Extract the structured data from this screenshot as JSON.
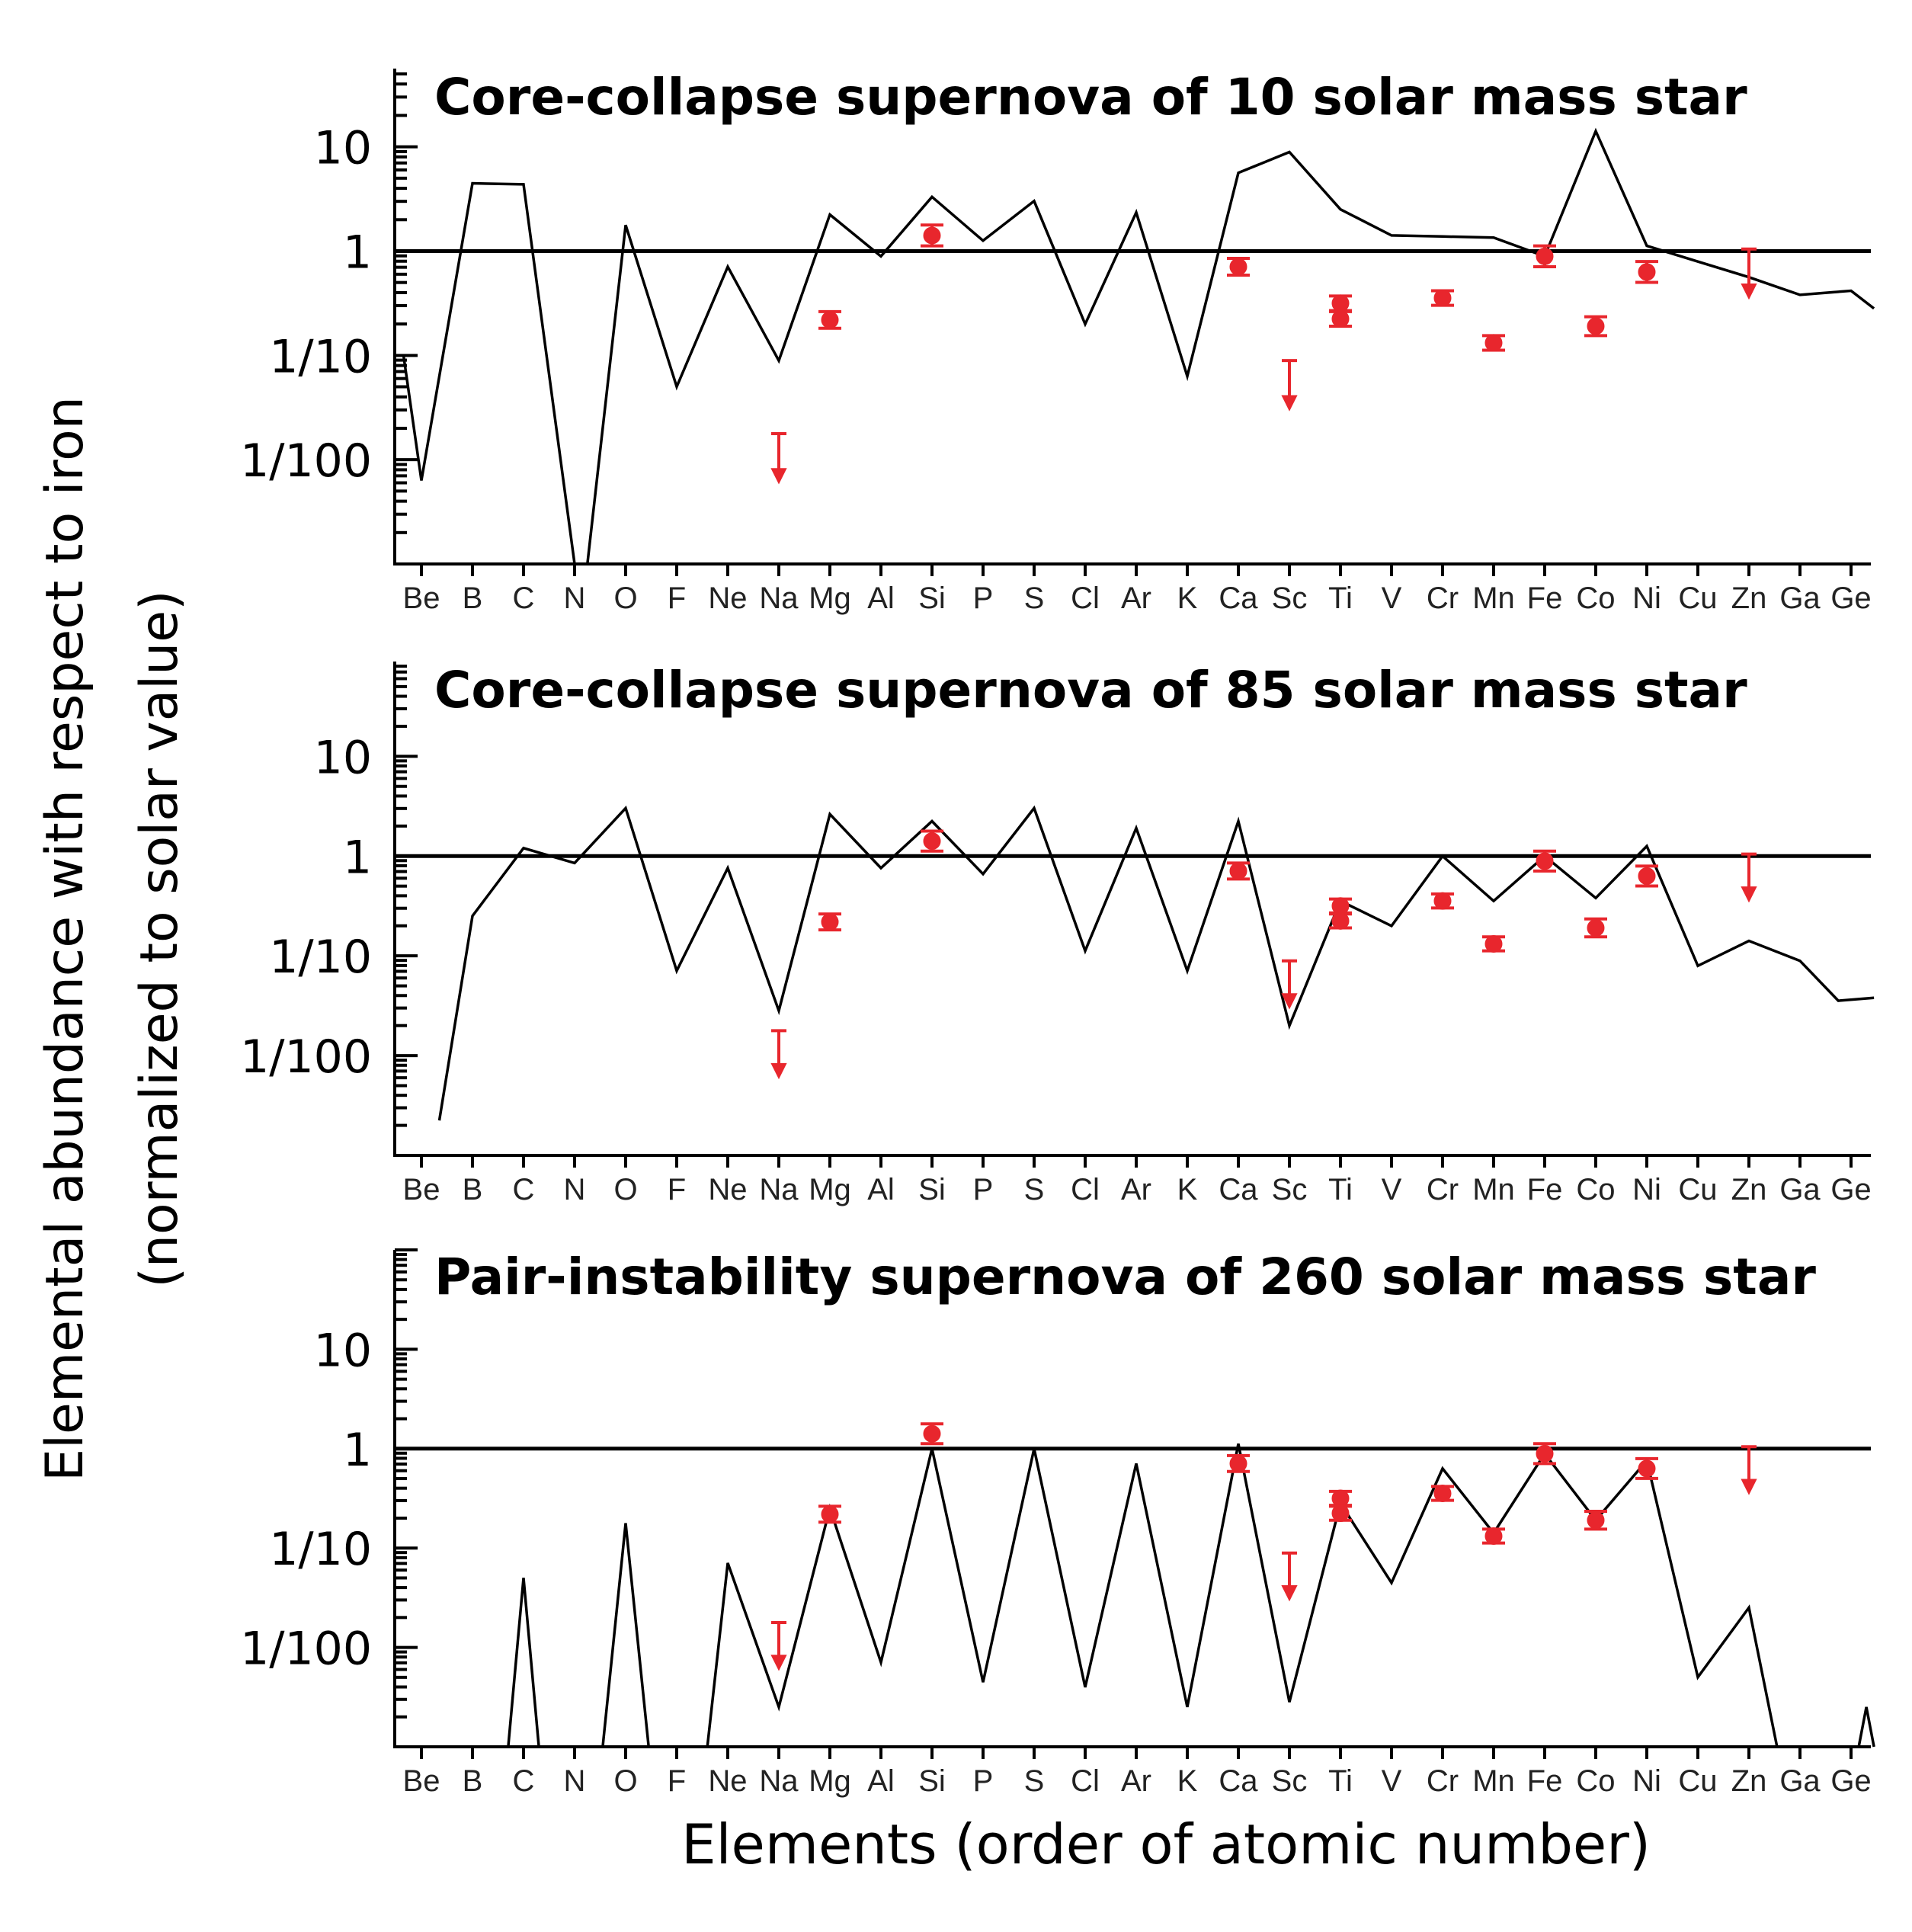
{
  "y_axis_label_line1": "Elemental abundance with respect to iron",
  "y_axis_label_line2": "(normalized to solar value)",
  "x_axis_label": "Elements (order of atomic number)",
  "colors": {
    "model": "#000000",
    "observed": "#e8262d",
    "background": "#ffffff"
  },
  "chart_data": [
    {
      "type": "line",
      "title": "Core-collapse supernova of 10 solar mass star",
      "scale": "log",
      "ylim_log10": [
        -3,
        1.75
      ],
      "yticks": [
        {
          "label": "10",
          "log10": 1
        },
        {
          "label": "1",
          "log10": 0
        },
        {
          "label": "1/10",
          "log10": -1
        },
        {
          "label": "1/100",
          "log10": -2
        }
      ],
      "categories": [
        "Be",
        "B",
        "C",
        "N",
        "O",
        "F",
        "Ne",
        "Na",
        "Mg",
        "Al",
        "Si",
        "P",
        "S",
        "Cl",
        "Ar",
        "K",
        "Ca",
        "Sc",
        "Ti",
        "V",
        "Cr",
        "Mn",
        "Fe",
        "Co",
        "Ni",
        "Cu",
        "Zn",
        "Ga",
        "Ge"
      ],
      "series": [
        {
          "name": "model",
          "points": [
            [
              -0.35,
              -1.0
            ],
            [
              0,
              -2.2
            ],
            [
              1,
              0.65
            ],
            [
              2,
              0.64
            ],
            [
              3,
              -3.0
            ],
            [
              3.25,
              -3.0
            ],
            [
              4,
              0.25
            ],
            [
              5,
              -1.3
            ],
            [
              6,
              -0.15
            ],
            [
              7,
              -1.05
            ],
            [
              8,
              0.35
            ],
            [
              9,
              -0.05
            ],
            [
              10,
              0.52
            ],
            [
              11,
              0.1
            ],
            [
              12,
              0.48
            ],
            [
              13,
              -0.7
            ],
            [
              14,
              0.37
            ],
            [
              15,
              -1.2
            ],
            [
              16,
              0.75
            ],
            [
              17,
              0.95
            ],
            [
              18,
              0.4
            ],
            [
              19,
              0.15
            ],
            [
              20,
              0.14
            ],
            [
              21,
              0.13
            ],
            [
              22,
              -0.05
            ],
            [
              23,
              1.15
            ],
            [
              24,
              0.05
            ],
            [
              25,
              -0.1
            ],
            [
              26,
              -0.25
            ],
            [
              27,
              -0.42
            ],
            [
              28,
              -0.38
            ],
            [
              28.45,
              -0.55
            ]
          ]
        }
      ],
      "observed": [
        {
          "element": "Na",
          "upper_limit": true,
          "log10": -2.0
        },
        {
          "element": "Mg",
          "log10": -0.66,
          "err": 0.08
        },
        {
          "element": "Si",
          "log10": 0.15,
          "err": 0.1
        },
        {
          "element": "Ca",
          "log10": -0.15,
          "err": 0.08
        },
        {
          "element": "Sc",
          "upper_limit": true,
          "log10": -1.3
        },
        {
          "element": "Ti",
          "log10": -0.5,
          "err": 0.07
        },
        {
          "element": "Ti",
          "log10": -0.65,
          "err": 0.07
        },
        {
          "element": "Cr",
          "log10": -0.45,
          "err": 0.07
        },
        {
          "element": "Mn",
          "log10": -0.88,
          "err": 0.07
        },
        {
          "element": "Fe",
          "log10": -0.05,
          "err": 0.1
        },
        {
          "element": "Co",
          "log10": -0.72,
          "err": 0.09
        },
        {
          "element": "Ni",
          "log10": -0.2,
          "err": 0.1
        },
        {
          "element": "Zn",
          "upper_limit": true,
          "log10": -0.23
        }
      ]
    },
    {
      "type": "line",
      "title": "Core-collapse supernova of 85 solar mass star",
      "scale": "log",
      "ylim_log10": [
        -3,
        1.95
      ],
      "yticks": [
        {
          "label": "10",
          "log10": 1
        },
        {
          "label": "1",
          "log10": 0
        },
        {
          "label": "1/10",
          "log10": -1
        },
        {
          "label": "1/100",
          "log10": -2
        }
      ],
      "categories": [
        "Be",
        "B",
        "C",
        "N",
        "O",
        "F",
        "Ne",
        "Na",
        "Mg",
        "Al",
        "Si",
        "P",
        "S",
        "Cl",
        "Ar",
        "K",
        "Ca",
        "Sc",
        "Ti",
        "V",
        "Cr",
        "Mn",
        "Fe",
        "Co",
        "Ni",
        "Cu",
        "Zn",
        "Ga",
        "Ge"
      ],
      "series": [
        {
          "name": "model",
          "points": [
            [
              0.35,
              -2.65
            ],
            [
              1,
              -0.6
            ],
            [
              2,
              0.08
            ],
            [
              3,
              -0.07
            ],
            [
              4,
              0.48
            ],
            [
              5,
              -1.15
            ],
            [
              6,
              -0.12
            ],
            [
              7,
              -1.55
            ],
            [
              8,
              0.42
            ],
            [
              9,
              -0.12
            ],
            [
              10,
              0.35
            ],
            [
              11,
              -0.18
            ],
            [
              12,
              0.48
            ],
            [
              13,
              -0.95
            ],
            [
              14,
              0.28
            ],
            [
              15,
              -1.15
            ],
            [
              16,
              0.35
            ],
            [
              17,
              -1.7
            ],
            [
              18,
              -0.45
            ],
            [
              19,
              -0.7
            ],
            [
              20,
              0.0
            ],
            [
              21,
              -0.45
            ],
            [
              22,
              0.0
            ],
            [
              23,
              -0.42
            ],
            [
              24,
              0.1
            ],
            [
              25,
              -1.1
            ],
            [
              26,
              -0.85
            ],
            [
              27,
              -1.05
            ],
            [
              27.75,
              -1.45
            ],
            [
              28.45,
              -1.42
            ]
          ]
        }
      ],
      "observed": [
        {
          "element": "Na",
          "upper_limit": true,
          "log10": -2.0
        },
        {
          "element": "Mg",
          "log10": -0.66,
          "err": 0.08
        },
        {
          "element": "Si",
          "log10": 0.15,
          "err": 0.1
        },
        {
          "element": "Ca",
          "log10": -0.15,
          "err": 0.08
        },
        {
          "element": "Sc",
          "upper_limit": true,
          "log10": -1.3
        },
        {
          "element": "Ti",
          "log10": -0.5,
          "err": 0.07
        },
        {
          "element": "Ti",
          "log10": -0.65,
          "err": 0.07
        },
        {
          "element": "Cr",
          "log10": -0.45,
          "err": 0.07
        },
        {
          "element": "Mn",
          "log10": -0.88,
          "err": 0.07
        },
        {
          "element": "Fe",
          "log10": -0.05,
          "err": 0.1
        },
        {
          "element": "Co",
          "log10": -0.72,
          "err": 0.09
        },
        {
          "element": "Ni",
          "log10": -0.2,
          "err": 0.1
        },
        {
          "element": "Zn",
          "upper_limit": true,
          "log10": -0.23
        }
      ]
    },
    {
      "type": "line",
      "title": "Pair-instability supernova of 260 solar mass star",
      "scale": "log",
      "ylim_log10": [
        -3,
        2.0
      ],
      "yticks": [
        {
          "label": "10",
          "log10": 1
        },
        {
          "label": "1",
          "log10": 0
        },
        {
          "label": "1/10",
          "log10": -1
        },
        {
          "label": "1/100",
          "log10": -2
        }
      ],
      "categories": [
        "Be",
        "B",
        "C",
        "N",
        "O",
        "F",
        "Ne",
        "Na",
        "Mg",
        "Al",
        "Si",
        "P",
        "S",
        "Cl",
        "Ar",
        "K",
        "Ca",
        "Sc",
        "Ti",
        "V",
        "Cr",
        "Mn",
        "Fe",
        "Co",
        "Ni",
        "Cu",
        "Zn",
        "Ga",
        "Ge"
      ],
      "series": [
        {
          "name": "model",
          "segments": [
            [
              [
                1.7,
                -3.0
              ],
              [
                2,
                -1.3
              ],
              [
                2.3,
                -3.0
              ]
            ],
            [
              [
                3.55,
                -3.0
              ],
              [
                4,
                -0.75
              ],
              [
                4.45,
                -3.0
              ]
            ],
            [
              [
                5.6,
                -3.0
              ],
              [
                6,
                -1.15
              ],
              [
                7,
                -2.6
              ],
              [
                8,
                -0.6
              ],
              [
                9,
                -2.15
              ],
              [
                10,
                0.0
              ],
              [
                11,
                -2.35
              ],
              [
                12,
                0.0
              ],
              [
                13,
                -2.4
              ],
              [
                14,
                -0.15
              ],
              [
                15,
                -2.6
              ],
              [
                16,
                0.05
              ],
              [
                17,
                -2.55
              ],
              [
                18,
                -0.55
              ],
              [
                19,
                -1.35
              ],
              [
                20,
                -0.2
              ],
              [
                21,
                -0.85
              ],
              [
                22,
                -0.05
              ],
              [
                23,
                -0.72
              ],
              [
                24,
                -0.12
              ],
              [
                25,
                -2.3
              ],
              [
                26,
                -1.6
              ],
              [
                26.55,
                -3.0
              ]
            ],
            [
              [
                28.15,
                -3.0
              ],
              [
                28.3,
                -2.6
              ],
              [
                28.45,
                -3.0
              ]
            ]
          ]
        }
      ],
      "observed": [
        {
          "element": "Na",
          "upper_limit": true,
          "log10": -2.0
        },
        {
          "element": "Mg",
          "log10": -0.66,
          "err": 0.08
        },
        {
          "element": "Si",
          "log10": 0.15,
          "err": 0.1
        },
        {
          "element": "Ca",
          "log10": -0.15,
          "err": 0.08
        },
        {
          "element": "Sc",
          "upper_limit": true,
          "log10": -1.3
        },
        {
          "element": "Ti",
          "log10": -0.5,
          "err": 0.07
        },
        {
          "element": "Ti",
          "log10": -0.65,
          "err": 0.07
        },
        {
          "element": "Cr",
          "log10": -0.45,
          "err": 0.07
        },
        {
          "element": "Mn",
          "log10": -0.88,
          "err": 0.07
        },
        {
          "element": "Fe",
          "log10": -0.05,
          "err": 0.1
        },
        {
          "element": "Co",
          "log10": -0.72,
          "err": 0.09
        },
        {
          "element": "Ni",
          "log10": -0.2,
          "err": 0.1
        },
        {
          "element": "Zn",
          "upper_limit": true,
          "log10": -0.23
        }
      ]
    }
  ]
}
